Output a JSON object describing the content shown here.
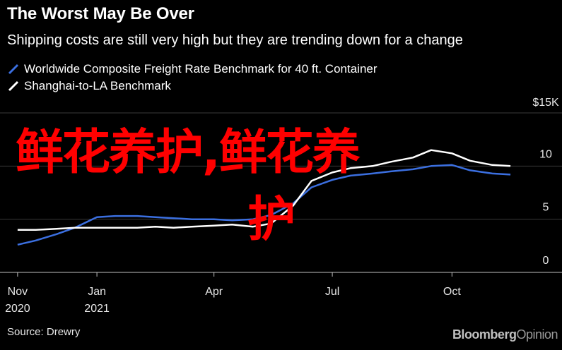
{
  "chart_data": {
    "type": "line",
    "title": "The Worst May Be Over",
    "subtitle": "Shipping costs are still very high but they are trending down for a change",
    "x": [
      "2020-11-01",
      "2020-11-15",
      "2020-12-01",
      "2020-12-15",
      "2021-01-01",
      "2021-01-15",
      "2021-02-01",
      "2021-02-15",
      "2021-03-01",
      "2021-03-15",
      "2021-04-01",
      "2021-04-15",
      "2021-05-01",
      "2021-05-15",
      "2021-06-01",
      "2021-06-15",
      "2021-07-01",
      "2021-07-15",
      "2021-08-01",
      "2021-08-15",
      "2021-09-01",
      "2021-09-15",
      "2021-10-01",
      "2021-10-15",
      "2021-11-01",
      "2021-11-15"
    ],
    "series": [
      {
        "name": "Worldwide Composite Freight Rate Benchmark for 40 ft. Container",
        "color": "#3b6fe0",
        "values": [
          2.6,
          3.0,
          3.6,
          4.2,
          5.2,
          5.3,
          5.3,
          5.2,
          5.1,
          5.0,
          5.0,
          4.9,
          5.0,
          5.4,
          6.5,
          8.0,
          8.7,
          9.1,
          9.3,
          9.5,
          9.7,
          10.0,
          10.1,
          9.6,
          9.3,
          9.2
        ]
      },
      {
        "name": "Shanghai-to-LA Benchmark",
        "color": "#ffffff",
        "values": [
          4.0,
          4.0,
          4.1,
          4.2,
          4.2,
          4.2,
          4.2,
          4.3,
          4.2,
          4.3,
          4.4,
          4.5,
          4.3,
          4.6,
          6.3,
          8.6,
          9.4,
          9.8,
          10.0,
          10.4,
          10.8,
          11.5,
          11.2,
          10.5,
          10.1,
          10.0
        ]
      }
    ],
    "x_ticks": [
      {
        "date": "2020-11-01",
        "label": "Nov",
        "sub": "2020"
      },
      {
        "date": "2021-01-01",
        "label": "Jan",
        "sub": "2021"
      },
      {
        "date": "2021-04-01",
        "label": "Apr",
        "sub": ""
      },
      {
        "date": "2021-07-01",
        "label": "Jul",
        "sub": ""
      },
      {
        "date": "2021-10-01",
        "label": "Oct",
        "sub": ""
      }
    ],
    "y_ticks": [
      {
        "value": 0,
        "label": "0"
      },
      {
        "value": 5,
        "label": "5"
      },
      {
        "value": 10,
        "label": "10"
      },
      {
        "value": 15,
        "label": "$15K"
      }
    ],
    "ylim": [
      0,
      15
    ],
    "xlim": [
      "2020-10-25",
      "2021-11-22"
    ],
    "grid": true,
    "legend_position": "top-left"
  },
  "source": "Source: Drewry",
  "brand": {
    "part1": "Bloomberg",
    "part2": "Opinion"
  },
  "watermark": {
    "line1": "鲜花养护,鲜花养",
    "line2": "护",
    "color": "#ff0000"
  }
}
